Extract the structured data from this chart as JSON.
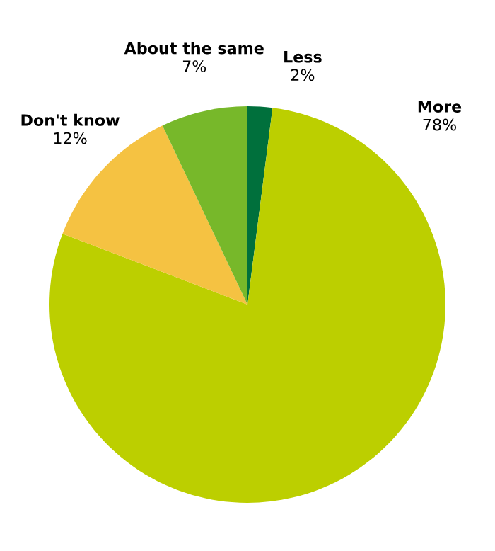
{
  "chart_data": {
    "type": "pie",
    "categories": [
      "Less",
      "More",
      "Don't know",
      "About the same"
    ],
    "values": [
      2,
      78,
      12,
      7
    ],
    "colors": [
      "#00703c",
      "#bccf00",
      "#f5c242",
      "#77b82a"
    ],
    "value_labels": [
      "2%",
      "78%",
      "12%",
      "7%"
    ]
  }
}
